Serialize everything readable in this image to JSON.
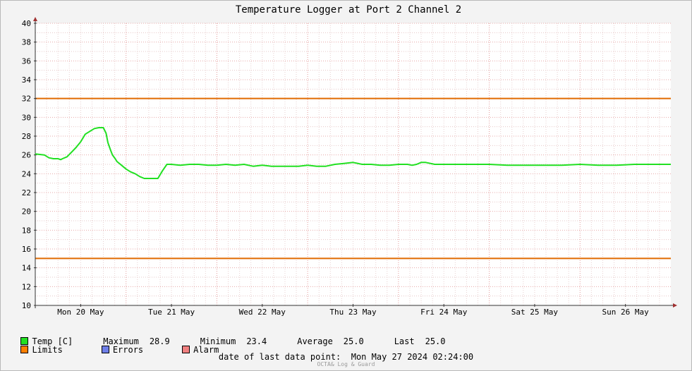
{
  "chart_data": {
    "type": "line",
    "title": "Temperature Logger at Port 2 Channel 2",
    "ylim": [
      10,
      40
    ],
    "y_ticks": [
      10,
      12,
      14,
      16,
      18,
      20,
      22,
      24,
      26,
      28,
      30,
      32,
      34,
      36,
      38,
      40
    ],
    "xlim": [
      0,
      7
    ],
    "x_day_labels": [
      "Mon 20 May",
      "Tue 21 May",
      "Wed 22 May",
      "Thu 23 May",
      "Fri 24 May",
      "Sat 25 May",
      "Sun 26 May"
    ],
    "grid": true,
    "limits": {
      "upper": 32,
      "lower": 15,
      "color": "#e06a00"
    },
    "series": [
      {
        "name": "Temp [C]",
        "color": "#22e022",
        "x": [
          0.0,
          0.1,
          0.15,
          0.2,
          0.25,
          0.28,
          0.3,
          0.35,
          0.4,
          0.45,
          0.5,
          0.55,
          0.6,
          0.65,
          0.7,
          0.72,
          0.75,
          0.78,
          0.8,
          0.83,
          0.85,
          0.88,
          0.9,
          0.95,
          1.0,
          1.05,
          1.1,
          1.15,
          1.2,
          1.25,
          1.3,
          1.35,
          1.4,
          1.45,
          1.5,
          1.6,
          1.7,
          1.8,
          1.9,
          2.0,
          2.1,
          2.2,
          2.3,
          2.4,
          2.5,
          2.6,
          2.7,
          2.8,
          2.9,
          3.0,
          3.1,
          3.2,
          3.3,
          3.4,
          3.5,
          3.6,
          3.7,
          3.8,
          3.9,
          4.0,
          4.1,
          4.15,
          4.2,
          4.25,
          4.3,
          4.4,
          4.5,
          4.6,
          4.8,
          5.0,
          5.2,
          5.4,
          5.6,
          5.8,
          6.0,
          6.2,
          6.4,
          6.6,
          6.8,
          6.9,
          7.0
        ],
        "values": [
          26.1,
          26.0,
          25.7,
          25.6,
          25.6,
          25.5,
          25.6,
          25.8,
          26.3,
          26.8,
          27.4,
          28.2,
          28.5,
          28.8,
          28.9,
          28.9,
          28.9,
          28.3,
          27.3,
          26.5,
          26.0,
          25.6,
          25.3,
          24.9,
          24.5,
          24.2,
          24.0,
          23.7,
          23.5,
          23.5,
          23.5,
          23.5,
          24.3,
          25.0,
          25.0,
          24.9,
          25.0,
          25.0,
          24.9,
          24.9,
          25.0,
          24.9,
          25.0,
          24.8,
          24.9,
          24.8,
          24.8,
          24.8,
          24.8,
          24.9,
          24.8,
          24.8,
          25.0,
          25.1,
          25.2,
          25.0,
          25.0,
          24.9,
          24.9,
          25.0,
          25.0,
          24.9,
          25.0,
          25.2,
          25.2,
          25.0,
          25.0,
          25.0,
          25.0,
          25.0,
          24.9,
          24.9,
          24.9,
          24.9,
          25.0,
          24.9,
          24.9,
          25.0,
          25.0,
          25.0,
          25.0
        ]
      }
    ]
  },
  "legend": {
    "temp_label": "Temp [C]",
    "maximum_label": "Maximum",
    "maximum_value": "28.9",
    "minimum_label": "Minimum",
    "minimum_value": "23.4",
    "average_label": "Average",
    "average_value": "25.0",
    "last_label": "Last",
    "last_value": "25.0",
    "limits_label": "Limits",
    "errors_label": "Errors",
    "alarm_label": "Alarm",
    "colors": {
      "temp": "#22e022",
      "limits": "#ff7f00",
      "errors": "#6f7fe8",
      "alarm": "#f08080"
    }
  },
  "footer": {
    "last_point_label": "date of last data point:",
    "last_point_value": "Mon May 27 2024 02:24:00",
    "credit": "OCTA& Log & Guard"
  }
}
